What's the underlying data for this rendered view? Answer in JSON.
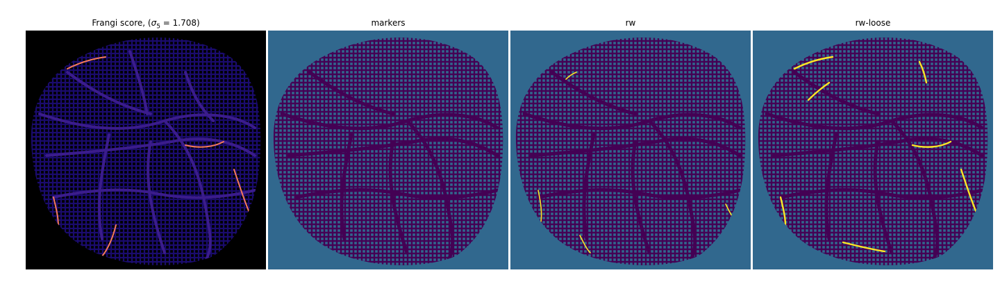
{
  "figure": {
    "panels": [
      {
        "title_text": "Frangi score, (",
        "sigma_symbol": "σ",
        "sigma_sub": "5",
        "sigma_value": " = 1.708)",
        "colormap": "magma",
        "background_color": "#000000"
      },
      {
        "title_text": "markers",
        "colormap": "viridis",
        "background_color": "#31688e"
      },
      {
        "title_text": "rw",
        "colormap": "viridis",
        "background_color": "#31688e"
      },
      {
        "title_text": "rw-loose",
        "colormap": "viridis",
        "background_color": "#31688e"
      }
    ]
  },
  "colors": {
    "frangi_mesh": "#1a0b6e",
    "frangi_vessel": "#3b1c8c",
    "frangi_hot": "#f57a5a",
    "seg_mesh": "#440154",
    "seg_bg": "#31688e",
    "seg_light": "#21918c",
    "seg_highlight": "#fde725"
  }
}
